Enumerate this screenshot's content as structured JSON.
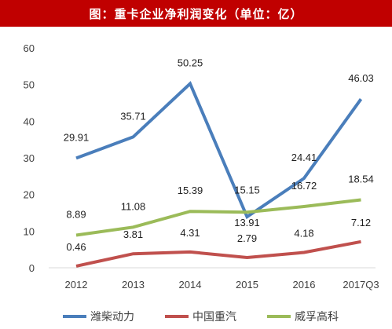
{
  "header": {
    "title": "图：重卡企业净利润变化（单位：亿）",
    "background": "#c00000"
  },
  "chart_data": {
    "type": "line",
    "title": "图：重卡企业净利润变化（单位：亿）",
    "categories": [
      "2012",
      "2013",
      "2014",
      "2015",
      "2016",
      "2017Q3"
    ],
    "ylim": [
      0,
      60
    ],
    "yticks": [
      0,
      10,
      20,
      30,
      40,
      50,
      60
    ],
    "grid": false,
    "legend_position": "bottom",
    "series": [
      {
        "name": "潍柴动力",
        "color": "#4a7ebb",
        "values": [
          29.91,
          35.71,
          50.25,
          13.91,
          24.41,
          46.03
        ]
      },
      {
        "name": "中国重汽",
        "color": "#c0504d",
        "values": [
          0.46,
          3.81,
          4.31,
          2.79,
          4.18,
          7.12
        ]
      },
      {
        "name": "威孚高科",
        "color": "#9bbb59",
        "values": [
          8.89,
          11.08,
          15.39,
          15.15,
          16.72,
          18.54
        ]
      }
    ]
  }
}
